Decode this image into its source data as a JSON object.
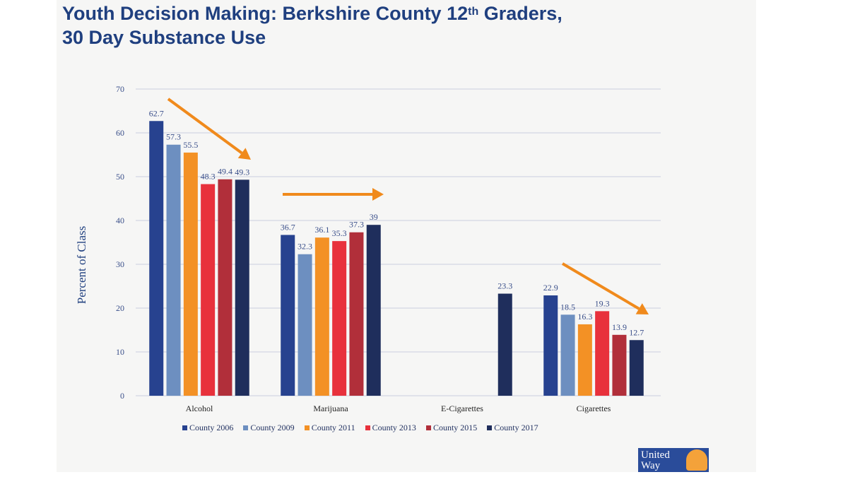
{
  "title": {
    "line1_a": "Youth Decision Making: Berkshire County 12",
    "line1_sup": "th",
    "line1_b": " Graders,",
    "line2": "30 Day Substance Use"
  },
  "logo_text": "United Way",
  "chart_data": {
    "type": "bar",
    "title": "Youth Decision Making: Berkshire County 12th Graders, 30 Day Substance Use",
    "xlabel": "",
    "ylabel": "Percent of Class",
    "ylim": [
      0,
      70
    ],
    "yticks": [
      "0",
      "10",
      "20",
      "30",
      "40",
      "50",
      "60",
      "70"
    ],
    "grid": true,
    "legend_position": "bottom",
    "categories": [
      "Alcohol",
      "Marijuana",
      "E-Cigarettes",
      "Cigarettes"
    ],
    "series": [
      {
        "name": "County 2006",
        "color": "#27428f",
        "values": [
          62.7,
          36.7,
          null,
          22.9
        ],
        "labels": [
          "62.7",
          "36.7",
          "",
          "22.9"
        ]
      },
      {
        "name": "County 2009",
        "color": "#6d8fc0",
        "values": [
          57.3,
          32.3,
          null,
          18.5
        ],
        "labels": [
          "57.3",
          "32.3",
          "",
          "18.5"
        ]
      },
      {
        "name": "County 2011",
        "color": "#f39125",
        "values": [
          55.5,
          36.1,
          null,
          16.3
        ],
        "labels": [
          "55.5",
          "36.1",
          "",
          "16.3"
        ]
      },
      {
        "name": "County 2013",
        "color": "#e8313c",
        "values": [
          48.3,
          35.3,
          null,
          19.3
        ],
        "labels": [
          "48.3",
          "35.3",
          "",
          "19.3"
        ]
      },
      {
        "name": "County 2015",
        "color": "#b12f3a",
        "values": [
          49.4,
          37.3,
          null,
          13.9
        ],
        "labels": [
          "49.4",
          "37.3",
          "",
          "13.9"
        ]
      },
      {
        "name": "County 2017",
        "color": "#1f2e5c",
        "values": [
          49.3,
          39,
          23.3,
          12.7
        ],
        "labels": [
          "49.3",
          "39",
          "23.3",
          "12.7"
        ]
      }
    ],
    "annotations": [
      "trend-arrow-down-alcohol",
      "trend-arrow-flat-marijuana",
      "trend-arrow-down-cigarettes"
    ],
    "arrow_color": "#f08a1c"
  }
}
